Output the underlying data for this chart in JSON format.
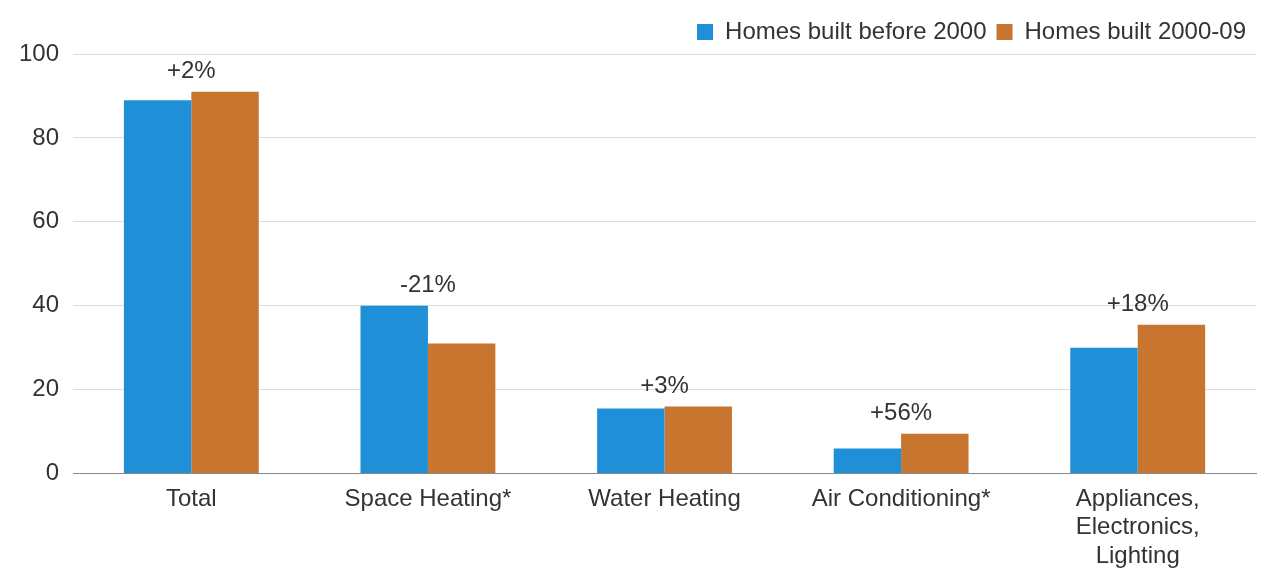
{
  "chart_data": {
    "type": "bar",
    "categories": [
      "Total",
      "Space Heating*",
      "Water Heating",
      "Air Conditioning*",
      "Appliances, Electronics, Lighting"
    ],
    "series": [
      {
        "name": "Homes built before 2000",
        "color": "#1f8fd8",
        "values": [
          89,
          40,
          15.5,
          6,
          30
        ]
      },
      {
        "name": "Homes built 2000-09",
        "color": "#c87530",
        "values": [
          91,
          31,
          16,
          9.5,
          35.5
        ]
      }
    ],
    "ylim": [
      0,
      100
    ],
    "yticks": [
      0,
      20,
      40,
      60,
      80,
      100
    ],
    "grid": "y",
    "legend": "top right",
    "annotations": [
      {
        "text": "+2%",
        "x": "Total",
        "y": 91
      },
      {
        "text": "-21%",
        "x": "Space Heating*",
        "y": 40
      },
      {
        "text": "+3%",
        "x": "Water Heating",
        "y": 16
      },
      {
        "text": "+56%",
        "x": "Air Conditioning*",
        "y": 9.5
      },
      {
        "text": "+18%",
        "x": "Appliances, Electronics, Lighting",
        "y": 35.5
      }
    ]
  }
}
